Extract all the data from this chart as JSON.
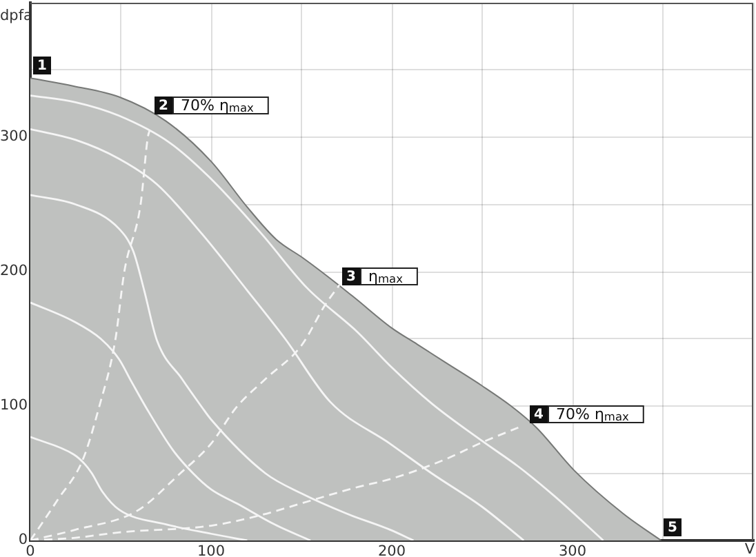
{
  "chart_data": {
    "type": "line",
    "xlabel": "V",
    "ylabel": "dpfa",
    "xlim": [
      0,
      400
    ],
    "ylim": [
      0,
      400
    ],
    "xticks": [
      0,
      {
        "value": 50,
        "label": null
      },
      100,
      {
        "value": 150,
        "label": null
      },
      200,
      {
        "value": 250,
        "label": null
      },
      300,
      {
        "value": 350,
        "label": null
      },
      {
        "value": 400,
        "label": null
      }
    ],
    "yticks": [
      0,
      {
        "value": 50,
        "label": null
      },
      100,
      {
        "value": 150,
        "label": null
      },
      200,
      {
        "value": 250,
        "label": null
      },
      300,
      {
        "value": 350,
        "label": null
      },
      {
        "value": 400,
        "label": null
      }
    ],
    "grid": true,
    "series": [
      {
        "type": "area",
        "color": "#bfc1bf",
        "x": [
          0,
          24,
          49,
          75,
          100,
          120,
          136,
          151,
          161,
          179,
          200,
          214,
          229,
          250,
          266,
          280,
          301,
          328,
          349
        ],
        "values": [
          344,
          338,
          330,
          312,
          282,
          248,
          224,
          210,
          200,
          181,
          158,
          146,
          133,
          115,
          100,
          84,
          52,
          20,
          0
        ]
      },
      {
        "type": "line",
        "color": "#f5f5f5",
        "x": [
          0,
          25,
          49,
          77,
          100,
          128,
          153,
          181,
          199,
          222,
          250,
          270,
          290,
          317
        ],
        "values": [
          331,
          326,
          316,
          296,
          269,
          228,
          188,
          155,
          130,
          102,
          74,
          55,
          33,
          0
        ]
      },
      {
        "type": "line",
        "color": "#f5f5f5",
        "x": [
          0,
          25,
          49,
          70,
          95,
          120,
          141,
          166,
          199,
          222,
          250,
          273
        ],
        "values": [
          306,
          298,
          284,
          265,
          228,
          186,
          150,
          103,
          72,
          50,
          25,
          0
        ]
      },
      {
        "type": "line",
        "color": "#f5f5f5",
        "x": [
          0,
          25,
          49,
          57,
          63,
          70,
          84,
          95,
          100,
          130,
          150,
          175,
          199,
          212
        ],
        "values": [
          257,
          250,
          232,
          215,
          186,
          149,
          120,
          99,
          90,
          50,
          35,
          20,
          8,
          0
        ]
      },
      {
        "type": "line",
        "color": "#f5f5f5",
        "x": [
          0,
          24,
          39,
          49,
          56,
          64,
          79,
          90,
          100,
          115,
          135,
          155
        ],
        "values": [
          177,
          163,
          150,
          135,
          118,
          99,
          67,
          50,
          38,
          27,
          12,
          0
        ]
      },
      {
        "type": "line",
        "color": "#f5f5f5",
        "x": [
          0,
          24,
          30,
          34,
          40,
          49,
          75,
          100,
          120
        ],
        "values": [
          77,
          64,
          57,
          50,
          36,
          23,
          12,
          5,
          0
        ]
      },
      {
        "type": "line",
        "color": "#f5f5f5",
        "line_style": "dashed",
        "x": [
          0,
          15,
          29,
          38,
          47,
          52,
          61,
          65,
          66
        ],
        "values": [
          0,
          30,
          60,
          99,
          149,
          200,
          250,
          300,
          305
        ]
      },
      {
        "type": "line",
        "color": "#f5f5f5",
        "line_style": "dashed",
        "x": [
          0,
          25,
          59,
          83,
          100,
          114,
          130,
          150,
          163,
          171
        ],
        "values": [
          0,
          8,
          22,
          50,
          72,
          99,
          120,
          145,
          175,
          190
        ]
      },
      {
        "type": "line",
        "color": "#f5f5f5",
        "line_style": "dashed",
        "x": [
          0,
          25,
          49,
          100,
          128,
          151,
          179,
          200,
          229,
          250,
          270
        ],
        "values": [
          0,
          2,
          6,
          11,
          19,
          28,
          39,
          46,
          60,
          73,
          84
        ]
      }
    ],
    "annotations": [
      {
        "text": "1",
        "x": 0,
        "y": 344
      },
      {
        "text": "2",
        "x": 67,
        "y": 314
      },
      {
        "text": "70% η$_{max}$",
        "x": 67,
        "y": 314
      },
      {
        "text": "3",
        "x": 171,
        "y": 187
      },
      {
        "text": "η$_{max}$",
        "x": 171,
        "y": 187
      },
      {
        "text": "4",
        "x": 275,
        "y": 84
      },
      {
        "text": "70% η$_{max}$",
        "x": 275,
        "y": 84
      },
      {
        "text": "5",
        "x": 349,
        "y": 0
      }
    ]
  }
}
